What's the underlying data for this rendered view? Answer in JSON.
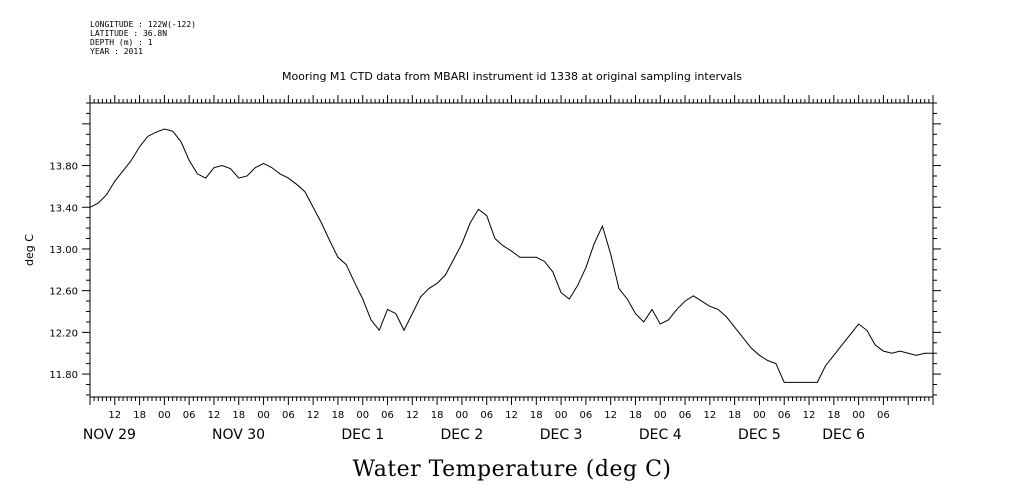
{
  "meta": {
    "longitude": "LONGITUDE : 122W(-122)",
    "latitude": "LATITUDE : 36.8N",
    "depth": "DEPTH (m) : 1",
    "year": "YEAR : 2011"
  },
  "chart_data": {
    "type": "line",
    "title": "Mooring M1 CTD data from MBARI instrument id 1338 at original sampling intervals",
    "xlabel": "Water Temperature (deg C)",
    "ylabel": "deg C",
    "ylim": [
      11.58,
      14.4
    ],
    "xlim": [
      "2011-11-28T06:00",
      "2011-12-06T18:00"
    ],
    "y_ticks": [
      "13.80",
      "13.40",
      "13.00",
      "12.60",
      "12.20",
      "11.80"
    ],
    "x_hour_ticks": [
      "12",
      "18",
      "00",
      "06",
      "12",
      "18",
      "00",
      "06",
      "12",
      "18",
      "00",
      "06",
      "12",
      "18",
      "00",
      "06",
      "12",
      "18",
      "00",
      "06",
      "12",
      "18",
      "00",
      "06",
      "12",
      "18",
      "00",
      "06",
      "12",
      "18",
      "00",
      "06"
    ],
    "x_date_labels": [
      "NOV 29",
      "NOV 30",
      "DEC  1",
      "DEC  2",
      "DEC  3",
      "DEC  4",
      "DEC  5",
      "DEC  6"
    ],
    "grid": false,
    "series": [
      {
        "x": [
          "2011-11-28T06:00",
          "2011-11-28T08:00",
          "2011-11-28T10:00",
          "2011-11-28T12:00",
          "2011-11-28T14:00",
          "2011-11-28T16:00",
          "2011-11-28T18:00",
          "2011-11-28T20:00",
          "2011-11-28T22:00",
          "2011-11-29T00:00",
          "2011-11-29T02:00",
          "2011-11-29T04:00",
          "2011-11-29T06:00",
          "2011-11-29T08:00",
          "2011-11-29T10:00",
          "2011-11-29T12:00",
          "2011-11-29T14:00",
          "2011-11-29T16:00",
          "2011-11-29T18:00",
          "2011-11-29T20:00",
          "2011-11-29T22:00",
          "2011-11-30T00:00",
          "2011-11-30T02:00",
          "2011-11-30T04:00",
          "2011-11-30T06:00",
          "2011-11-30T08:00",
          "2011-11-30T10:00",
          "2011-11-30T12:00",
          "2011-11-30T14:00",
          "2011-11-30T16:00",
          "2011-11-30T18:00",
          "2011-11-30T20:00",
          "2011-11-30T22:00",
          "2011-12-01T00:00",
          "2011-12-01T02:00",
          "2011-12-01T04:00",
          "2011-12-01T06:00",
          "2011-12-01T08:00",
          "2011-12-01T10:00",
          "2011-12-01T12:00",
          "2011-12-01T14:00",
          "2011-12-01T16:00",
          "2011-12-01T18:00",
          "2011-12-01T20:00",
          "2011-12-01T22:00",
          "2011-12-02T00:00",
          "2011-12-02T02:00",
          "2011-12-02T04:00",
          "2011-12-02T06:00",
          "2011-12-02T08:00",
          "2011-12-02T10:00",
          "2011-12-02T12:00",
          "2011-12-02T14:00",
          "2011-12-02T16:00",
          "2011-12-02T18:00",
          "2011-12-02T20:00",
          "2011-12-02T22:00",
          "2011-12-03T00:00",
          "2011-12-03T02:00",
          "2011-12-03T04:00",
          "2011-12-03T06:00",
          "2011-12-03T08:00",
          "2011-12-03T10:00",
          "2011-12-03T12:00",
          "2011-12-03T14:00",
          "2011-12-03T16:00",
          "2011-12-03T18:00",
          "2011-12-03T20:00",
          "2011-12-03T22:00",
          "2011-12-04T00:00",
          "2011-12-04T02:00",
          "2011-12-04T04:00",
          "2011-12-04T06:00",
          "2011-12-04T08:00",
          "2011-12-04T10:00",
          "2011-12-04T12:00",
          "2011-12-04T14:00",
          "2011-12-04T16:00",
          "2011-12-04T18:00",
          "2011-12-04T20:00",
          "2011-12-04T22:00",
          "2011-12-05T00:00",
          "2011-12-05T02:00",
          "2011-12-05T04:00",
          "2011-12-05T06:00",
          "2011-12-05T08:00",
          "2011-12-05T10:00",
          "2011-12-05T12:00",
          "2011-12-05T14:00",
          "2011-12-05T16:00",
          "2011-12-05T18:00",
          "2011-12-05T20:00",
          "2011-12-05T22:00",
          "2011-12-06T00:00",
          "2011-12-06T02:00",
          "2011-12-06T04:00",
          "2011-12-06T06:00",
          "2011-12-06T08:00",
          "2011-12-06T10:00",
          "2011-12-06T12:00",
          "2011-12-06T14:00",
          "2011-12-06T16:00",
          "2011-12-06T18:00"
        ],
        "y": [
          13.4,
          13.44,
          13.52,
          13.65,
          13.75,
          13.85,
          13.98,
          14.08,
          14.12,
          14.15,
          14.13,
          14.03,
          13.85,
          13.72,
          13.68,
          13.78,
          13.8,
          13.77,
          13.68,
          13.7,
          13.78,
          13.82,
          13.78,
          13.72,
          13.68,
          13.62,
          13.55,
          13.4,
          13.25,
          13.08,
          12.92,
          12.85,
          12.68,
          12.52,
          12.32,
          12.22,
          12.42,
          12.38,
          12.22,
          12.38,
          12.54,
          12.62,
          12.67,
          12.75,
          12.9,
          13.05,
          13.25,
          13.38,
          13.32,
          13.1,
          13.03,
          12.98,
          12.92,
          12.92,
          12.92,
          12.88,
          12.78,
          12.58,
          12.52,
          12.65,
          12.82,
          13.05,
          13.22,
          12.95,
          12.62,
          12.52,
          12.38,
          12.3,
          12.42,
          12.28,
          12.32,
          12.42,
          12.5,
          12.55,
          12.5,
          12.45,
          12.42,
          12.35,
          12.25,
          12.15,
          12.05,
          11.98,
          11.93,
          11.9,
          11.72,
          11.72,
          11.72,
          11.72,
          11.72,
          11.88,
          11.98,
          12.08,
          12.18,
          12.28,
          12.22,
          12.08,
          12.02,
          12.0,
          12.02,
          12.0,
          11.98,
          12.0,
          12.0
        ]
      }
    ]
  }
}
